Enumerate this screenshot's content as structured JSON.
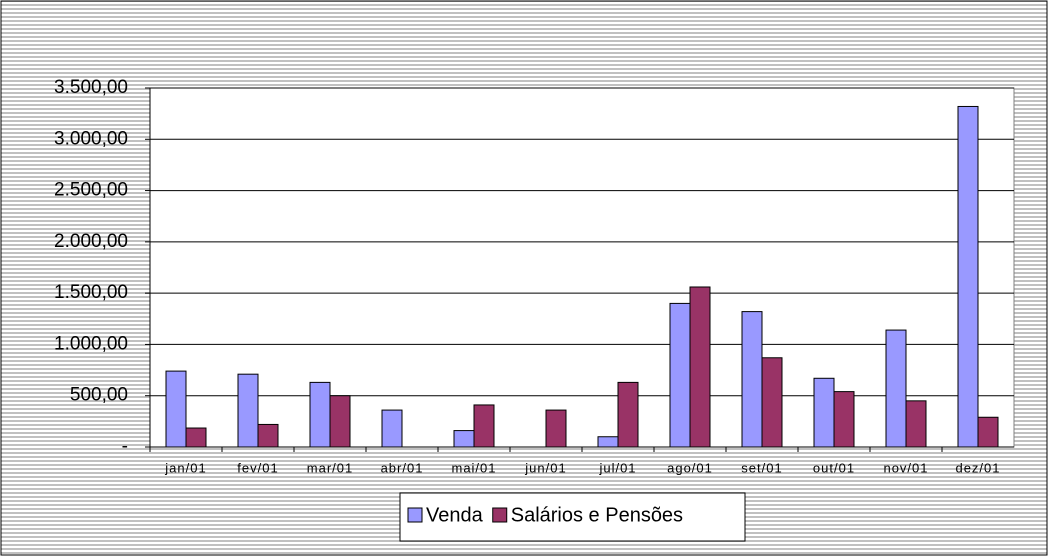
{
  "chart_data": {
    "type": "bar",
    "categories": [
      "jan/01",
      "fev/01",
      "mar/01",
      "abr/01",
      "mai/01",
      "jun/01",
      "jul/01",
      "ago/01",
      "set/01",
      "out/01",
      "nov/01",
      "dez/01"
    ],
    "series": [
      {
        "name": "Venda",
        "color": "#9999ff",
        "values": [
          740,
          710,
          630,
          360,
          160,
          0,
          100,
          1400,
          1320,
          670,
          1140,
          3320
        ]
      },
      {
        "name": "Salários e Pensões",
        "color": "#993366",
        "values": [
          185,
          220,
          500,
          0,
          410,
          360,
          630,
          1560,
          870,
          540,
          450,
          290
        ]
      }
    ],
    "ylim": [
      0,
      3500
    ],
    "yticks": [
      {
        "value": 0,
        "label": "-"
      },
      {
        "value": 500,
        "label": "500,00"
      },
      {
        "value": 1000,
        "label": "1.000,00"
      },
      {
        "value": 1500,
        "label": "1.500,00"
      },
      {
        "value": 2000,
        "label": "2.000,00"
      },
      {
        "value": 2500,
        "label": "2.500,00"
      },
      {
        "value": 3000,
        "label": "3.000,00"
      },
      {
        "value": 3500,
        "label": "3.500,00"
      }
    ],
    "grid": true,
    "legend": "bottom"
  }
}
